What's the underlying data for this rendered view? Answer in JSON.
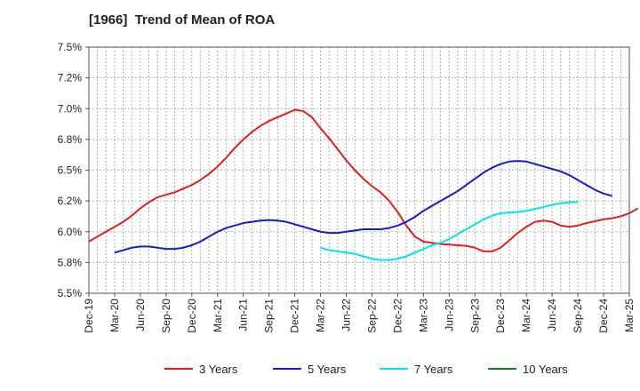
{
  "chart_data": {
    "type": "line",
    "title": "[1966]  Trend of Mean of ROA",
    "ylim": [
      5.5,
      7.5
    ],
    "yticks": [
      "7.5%",
      "7.2%",
      "7.0%",
      "6.8%",
      "6.5%",
      "6.2%",
      "6.0%",
      "5.8%",
      "5.5%"
    ],
    "ytick_values": [
      7.5,
      7.25,
      7.0,
      6.75,
      6.5,
      6.25,
      6.0,
      5.75,
      5.5
    ],
    "xticks": [
      "Dec-19",
      "Mar-20",
      "Jun-20",
      "Sep-20",
      "Dec-20",
      "Mar-21",
      "Jun-21",
      "Sep-21",
      "Dec-21",
      "Mar-22",
      "Jun-22",
      "Sep-22",
      "Dec-22",
      "Mar-23",
      "Jun-23",
      "Sep-23",
      "Dec-23",
      "Mar-24",
      "Jun-24",
      "Sep-24",
      "Dec-24",
      "Mar-25"
    ],
    "grid": true,
    "legend_position": "bottom",
    "series": [
      {
        "name": "3 Years",
        "color": "#e02020",
        "start_index": 0,
        "values": [
          5.92,
          5.96,
          6.0,
          6.04,
          6.08,
          6.13,
          6.19,
          6.24,
          6.28,
          6.3,
          6.32,
          6.35,
          6.38,
          6.42,
          6.47,
          6.53,
          6.6,
          6.68,
          6.75,
          6.81,
          6.86,
          6.9,
          6.93,
          6.96,
          6.99,
          6.98,
          6.93,
          6.84,
          6.76,
          6.67,
          6.58,
          6.5,
          6.43,
          6.37,
          6.32,
          6.25,
          6.16,
          6.05,
          5.96,
          5.92,
          5.91,
          5.9,
          5.895,
          5.89,
          5.885,
          5.87,
          5.84,
          5.84,
          5.87,
          5.93,
          5.99,
          6.04,
          6.08,
          6.09,
          6.08,
          6.05,
          6.04,
          6.05,
          6.07,
          6.085,
          6.1,
          6.11,
          6.125,
          6.15,
          6.19
        ]
      },
      {
        "name": "5 Years",
        "color": "#1a1acc",
        "start_index": 3,
        "values": [
          5.83,
          5.85,
          5.87,
          5.88,
          5.88,
          5.87,
          5.86,
          5.86,
          5.87,
          5.89,
          5.92,
          5.96,
          6.0,
          6.03,
          6.05,
          6.07,
          6.08,
          6.09,
          6.095,
          6.09,
          6.08,
          6.06,
          6.04,
          6.02,
          6.0,
          5.99,
          5.99,
          6.0,
          6.01,
          6.02,
          6.02,
          6.02,
          6.03,
          6.05,
          6.08,
          6.12,
          6.17,
          6.21,
          6.25,
          6.29,
          6.33,
          6.38,
          6.43,
          6.48,
          6.52,
          6.55,
          6.57,
          6.575,
          6.57,
          6.55,
          6.53,
          6.51,
          6.49,
          6.46,
          6.42,
          6.38,
          6.34,
          6.31,
          6.29
        ]
      },
      {
        "name": "7 Years",
        "color": "#00e5e5",
        "start_index": 27,
        "values": [
          5.87,
          5.85,
          5.84,
          5.83,
          5.82,
          5.8,
          5.78,
          5.77,
          5.77,
          5.78,
          5.8,
          5.83,
          5.86,
          5.89,
          5.91,
          5.94,
          5.98,
          6.02,
          6.06,
          6.1,
          6.13,
          6.15,
          6.155,
          6.16,
          6.17,
          6.185,
          6.2,
          6.22,
          6.23,
          6.24,
          6.24
        ]
      },
      {
        "name": "10 Years",
        "color": "#1a7a1a",
        "start_index": 0,
        "values": []
      }
    ]
  }
}
